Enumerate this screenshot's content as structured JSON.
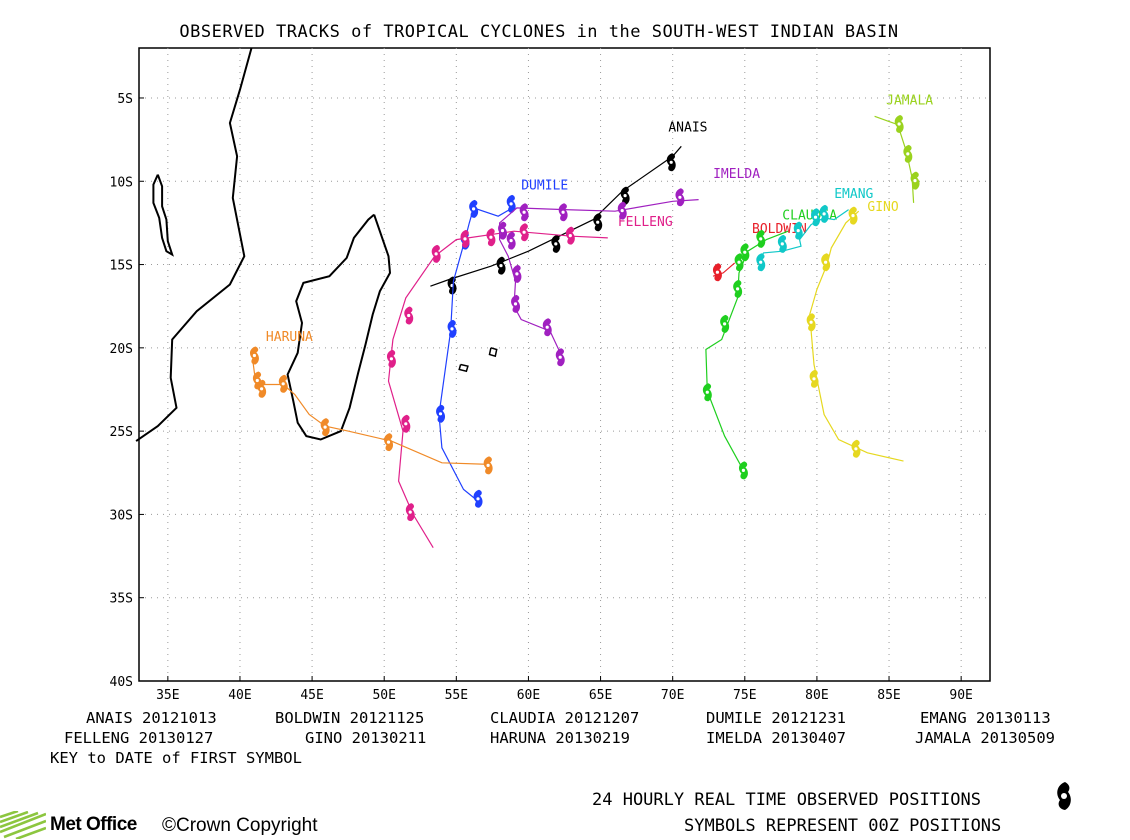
{
  "title": "OBSERVED TRACKS of TROPICAL CYCLONES in the SOUTH-WEST INDIAN BASIN",
  "colors": {
    "ANAIS": "#000000",
    "BOLDWIN": "#e8202a",
    "CLAUDIA": "#1fcf1f",
    "DUMILE": "#2040ff",
    "EMANG": "#10c8c8",
    "FELLENG": "#e0208a",
    "GINO": "#e6d820",
    "HARUNA": "#f08a28",
    "IMELDA": "#a020c0",
    "JAMALA": "#9ad21e"
  },
  "chart_data": {
    "type": "map",
    "lon_ticks": [
      "35E",
      "40E",
      "45E",
      "50E",
      "55E",
      "60E",
      "65E",
      "70E",
      "75E",
      "80E",
      "85E",
      "90E"
    ],
    "lat_ticks": [
      "5S",
      "10S",
      "15S",
      "20S",
      "25S",
      "30S",
      "35S",
      "40S"
    ],
    "lon_range": [
      33,
      92
    ],
    "lat_range": [
      -40,
      -2
    ],
    "grid": true,
    "storms": [
      {
        "name": "ANAIS",
        "label": "ANAIS",
        "label_pos": [
          69.7,
          -7.0
        ],
        "track": [
          [
            53.2,
            -16.3
          ],
          [
            54.5,
            -15.9
          ],
          [
            57.4,
            -15.1
          ],
          [
            60.0,
            -14.2
          ],
          [
            64.5,
            -12.3
          ],
          [
            66.5,
            -10.6
          ],
          [
            70.0,
            -8.5
          ],
          [
            70.6,
            -7.9
          ]
        ],
        "symbols": [
          [
            54.7,
            -16.2
          ],
          [
            58.1,
            -15.0
          ],
          [
            61.9,
            -13.7
          ],
          [
            64.8,
            -12.4
          ],
          [
            66.7,
            -10.8
          ],
          [
            69.9,
            -8.8
          ]
        ]
      },
      {
        "name": "BOLDWIN",
        "label": "BOLDWIN",
        "label_pos": [
          75.5,
          -13.1
        ],
        "track": [
          [
            72.8,
            -15.7
          ],
          [
            73.5,
            -15.5
          ],
          [
            74.3,
            -14.9
          ]
        ],
        "symbols": [
          [
            73.1,
            -15.4
          ]
        ]
      },
      {
        "name": "CLAUDIA",
        "label": "CLAUDIA",
        "label_pos": [
          77.6,
          -12.3
        ],
        "track": [
          [
            78.0,
            -13.0
          ],
          [
            76.5,
            -13.5
          ],
          [
            75.2,
            -14.2
          ],
          [
            74.6,
            -15.5
          ],
          [
            74.5,
            -17.0
          ],
          [
            73.4,
            -19.5
          ],
          [
            72.3,
            -20.1
          ],
          [
            72.4,
            -22.6
          ],
          [
            73.6,
            -25.3
          ],
          [
            75.0,
            -27.5
          ]
        ],
        "symbols": [
          [
            76.1,
            -13.4
          ],
          [
            75.0,
            -14.2
          ],
          [
            74.6,
            -14.8
          ],
          [
            74.5,
            -16.4
          ],
          [
            73.6,
            -18.5
          ],
          [
            72.4,
            -22.6
          ],
          [
            74.9,
            -27.3
          ]
        ]
      },
      {
        "name": "DUMILE",
        "label": "DUMILE",
        "label_pos": [
          59.5,
          -10.5
        ],
        "track": [
          [
            58.9,
            -11.6
          ],
          [
            57.9,
            -12.1
          ],
          [
            56.2,
            -11.6
          ],
          [
            55.9,
            -12.5
          ],
          [
            55.6,
            -13.5
          ],
          [
            54.8,
            -16.0
          ],
          [
            54.6,
            -19.0
          ],
          [
            53.8,
            -24.0
          ],
          [
            54.0,
            -26.0
          ],
          [
            55.5,
            -28.5
          ],
          [
            56.5,
            -29.2
          ]
        ],
        "symbols": [
          [
            58.8,
            -11.3
          ],
          [
            56.2,
            -11.6
          ],
          [
            55.6,
            -13.5
          ],
          [
            54.7,
            -18.8
          ],
          [
            53.9,
            -23.9
          ],
          [
            56.5,
            -29.0
          ]
        ]
      },
      {
        "name": "EMANG",
        "label": "EMANG",
        "label_pos": [
          81.2,
          -11.0
        ],
        "track": [
          [
            82.2,
            -11.7
          ],
          [
            81.2,
            -12.3
          ],
          [
            80.5,
            -12.2
          ],
          [
            79.6,
            -12.6
          ],
          [
            78.8,
            -13.5
          ],
          [
            78.9,
            -13.9
          ],
          [
            77.6,
            -14.2
          ],
          [
            76.3,
            -14.3
          ],
          [
            76.0,
            -14.8
          ]
        ],
        "symbols": [
          [
            80.5,
            -11.9
          ],
          [
            79.9,
            -12.1
          ],
          [
            78.7,
            -12.9
          ],
          [
            77.6,
            -13.7
          ],
          [
            76.1,
            -14.8
          ]
        ]
      },
      {
        "name": "FELLENG",
        "label": "FELLENG",
        "label_pos": [
          66.2,
          -12.7
        ],
        "track": [
          [
            65.5,
            -13.4
          ],
          [
            63.0,
            -13.3
          ],
          [
            59.0,
            -13.0
          ],
          [
            55.0,
            -13.5
          ],
          [
            53.5,
            -14.5
          ],
          [
            51.5,
            -17.0
          ],
          [
            50.6,
            -19.5
          ],
          [
            50.3,
            -22.0
          ],
          [
            51.3,
            -25.0
          ],
          [
            51.0,
            -28.0
          ],
          [
            52.0,
            -30.0
          ],
          [
            53.4,
            -32.0
          ]
        ],
        "symbols": [
          [
            62.9,
            -13.2
          ],
          [
            59.7,
            -13.0
          ],
          [
            57.4,
            -13.3
          ],
          [
            55.6,
            -13.4
          ],
          [
            53.6,
            -14.3
          ],
          [
            51.7,
            -18.0
          ],
          [
            50.5,
            -20.6
          ],
          [
            51.5,
            -24.5
          ],
          [
            51.8,
            -29.8
          ]
        ]
      },
      {
        "name": "GINO",
        "label": "GINO",
        "label_pos": [
          83.5,
          -11.8
        ],
        "track": [
          [
            82.9,
            -11.8
          ],
          [
            82.0,
            -12.5
          ],
          [
            81.0,
            -14.0
          ],
          [
            80.7,
            -15.0
          ],
          [
            80.0,
            -16.5
          ],
          [
            79.5,
            -18.0
          ],
          [
            79.8,
            -21.0
          ],
          [
            80.5,
            -24.0
          ],
          [
            81.5,
            -25.5
          ],
          [
            83.5,
            -26.3
          ],
          [
            86.0,
            -26.8
          ]
        ],
        "symbols": [
          [
            82.5,
            -12.0
          ],
          [
            80.6,
            -14.8
          ],
          [
            79.6,
            -18.4
          ],
          [
            79.8,
            -21.8
          ],
          [
            82.7,
            -26.0
          ]
        ]
      },
      {
        "name": "HARUNA",
        "label": "HARUNA",
        "label_pos": [
          41.8,
          -19.6
        ],
        "track": [
          [
            40.9,
            -20.8
          ],
          [
            41.0,
            -21.5
          ],
          [
            41.2,
            -22.2
          ],
          [
            41.5,
            -22.2
          ],
          [
            43.0,
            -22.2
          ],
          [
            43.8,
            -22.8
          ],
          [
            44.8,
            -24.0
          ],
          [
            45.9,
            -24.7
          ],
          [
            47.5,
            -25.0
          ],
          [
            50.5,
            -25.6
          ],
          [
            54.0,
            -26.9
          ],
          [
            57.3,
            -27.0
          ]
        ],
        "symbols": [
          [
            41.0,
            -20.4
          ],
          [
            41.2,
            -21.9
          ],
          [
            41.5,
            -22.4
          ],
          [
            43.0,
            -22.1
          ],
          [
            45.9,
            -24.7
          ],
          [
            50.3,
            -25.6
          ],
          [
            57.2,
            -27.0
          ]
        ]
      },
      {
        "name": "IMELDA",
        "label": "IMELDA",
        "label_pos": [
          72.8,
          -9.8
        ],
        "track": [
          [
            71.8,
            -11.1
          ],
          [
            70.0,
            -11.2
          ],
          [
            66.0,
            -11.8
          ],
          [
            62.5,
            -11.7
          ],
          [
            59.2,
            -11.6
          ],
          [
            58.0,
            -12.5
          ],
          [
            58.0,
            -13.5
          ],
          [
            58.6,
            -14.5
          ],
          [
            59.1,
            -16.0
          ],
          [
            59.0,
            -17.5
          ],
          [
            59.5,
            -18.3
          ],
          [
            61.5,
            -19.0
          ],
          [
            62.2,
            -20.3
          ],
          [
            62.3,
            -21.0
          ]
        ],
        "symbols": [
          [
            70.5,
            -10.9
          ],
          [
            66.5,
            -11.7
          ],
          [
            62.4,
            -11.8
          ],
          [
            59.7,
            -11.8
          ],
          [
            58.2,
            -12.9
          ],
          [
            58.8,
            -13.5
          ],
          [
            59.2,
            -15.5
          ],
          [
            59.1,
            -17.3
          ],
          [
            61.3,
            -18.7
          ],
          [
            62.2,
            -20.5
          ]
        ]
      },
      {
        "name": "JAMALA",
        "label": "JAMALA",
        "label_pos": [
          84.8,
          -5.4
        ],
        "track": [
          [
            84.0,
            -6.1
          ],
          [
            85.6,
            -6.6
          ],
          [
            86.2,
            -8.2
          ],
          [
            86.6,
            -9.8
          ],
          [
            86.7,
            -11.3
          ]
        ],
        "symbols": [
          [
            85.7,
            -6.5
          ],
          [
            86.3,
            -8.3
          ],
          [
            86.8,
            -9.9
          ]
        ]
      }
    ]
  },
  "legend": [
    [
      "ANAIS 20121013",
      "BOLDWIN 20121125",
      "CLAUDIA 20121207",
      "DUMILE 20121231",
      "EMANG 20130113"
    ],
    [
      "FELLENG 20130127",
      "GINO 20130211",
      "HARUNA 20130219",
      "IMELDA 20130407",
      "JAMALA 20130509"
    ]
  ],
  "key_text": "KEY to DATE of FIRST SYMBOL",
  "footer": {
    "line1": "24 HOURLY REAL TIME OBSERVED POSITIONS",
    "line2": "SYMBOLS REPRESENT 00Z POSITIONS",
    "brand": "Met Office",
    "copyright": "©Crown Copyright"
  }
}
